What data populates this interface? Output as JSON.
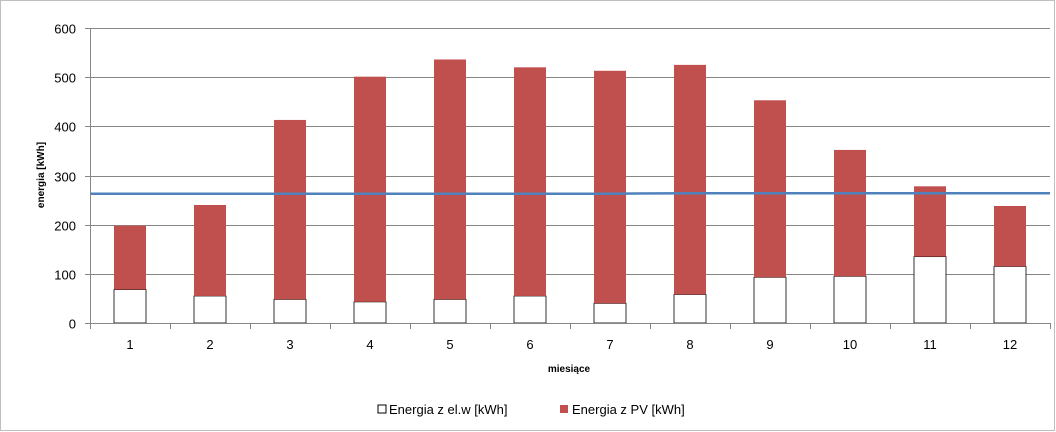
{
  "chart_data": {
    "type": "bar",
    "stacked": true,
    "categories": [
      "1",
      "2",
      "3",
      "4",
      "5",
      "6",
      "7",
      "8",
      "9",
      "10",
      "11",
      "12"
    ],
    "series": [
      {
        "name": "Energia z el.w [kWh]",
        "values": [
          68,
          55,
          48,
          43,
          48,
          55,
          40,
          58,
          93,
          95,
          135,
          115
        ],
        "color": "#ffffff"
      },
      {
        "name": "Energia z PV [kWh]",
        "values": [
          130,
          185,
          365,
          458,
          488,
          465,
          473,
          467,
          360,
          257,
          143,
          123
        ],
        "color": "#c0504d"
      }
    ],
    "line": {
      "values": [
        263,
        263,
        263,
        263,
        263,
        263,
        263,
        264,
        264,
        264,
        264,
        264
      ],
      "color": "#4f81bd"
    },
    "yticks": [
      0,
      100,
      200,
      300,
      400,
      500,
      600
    ],
    "ylim": [
      0,
      600
    ],
    "xlabel": "miesiące",
    "ylabel": "energia [kWh]",
    "grid": true,
    "legend_position": "bottom"
  }
}
